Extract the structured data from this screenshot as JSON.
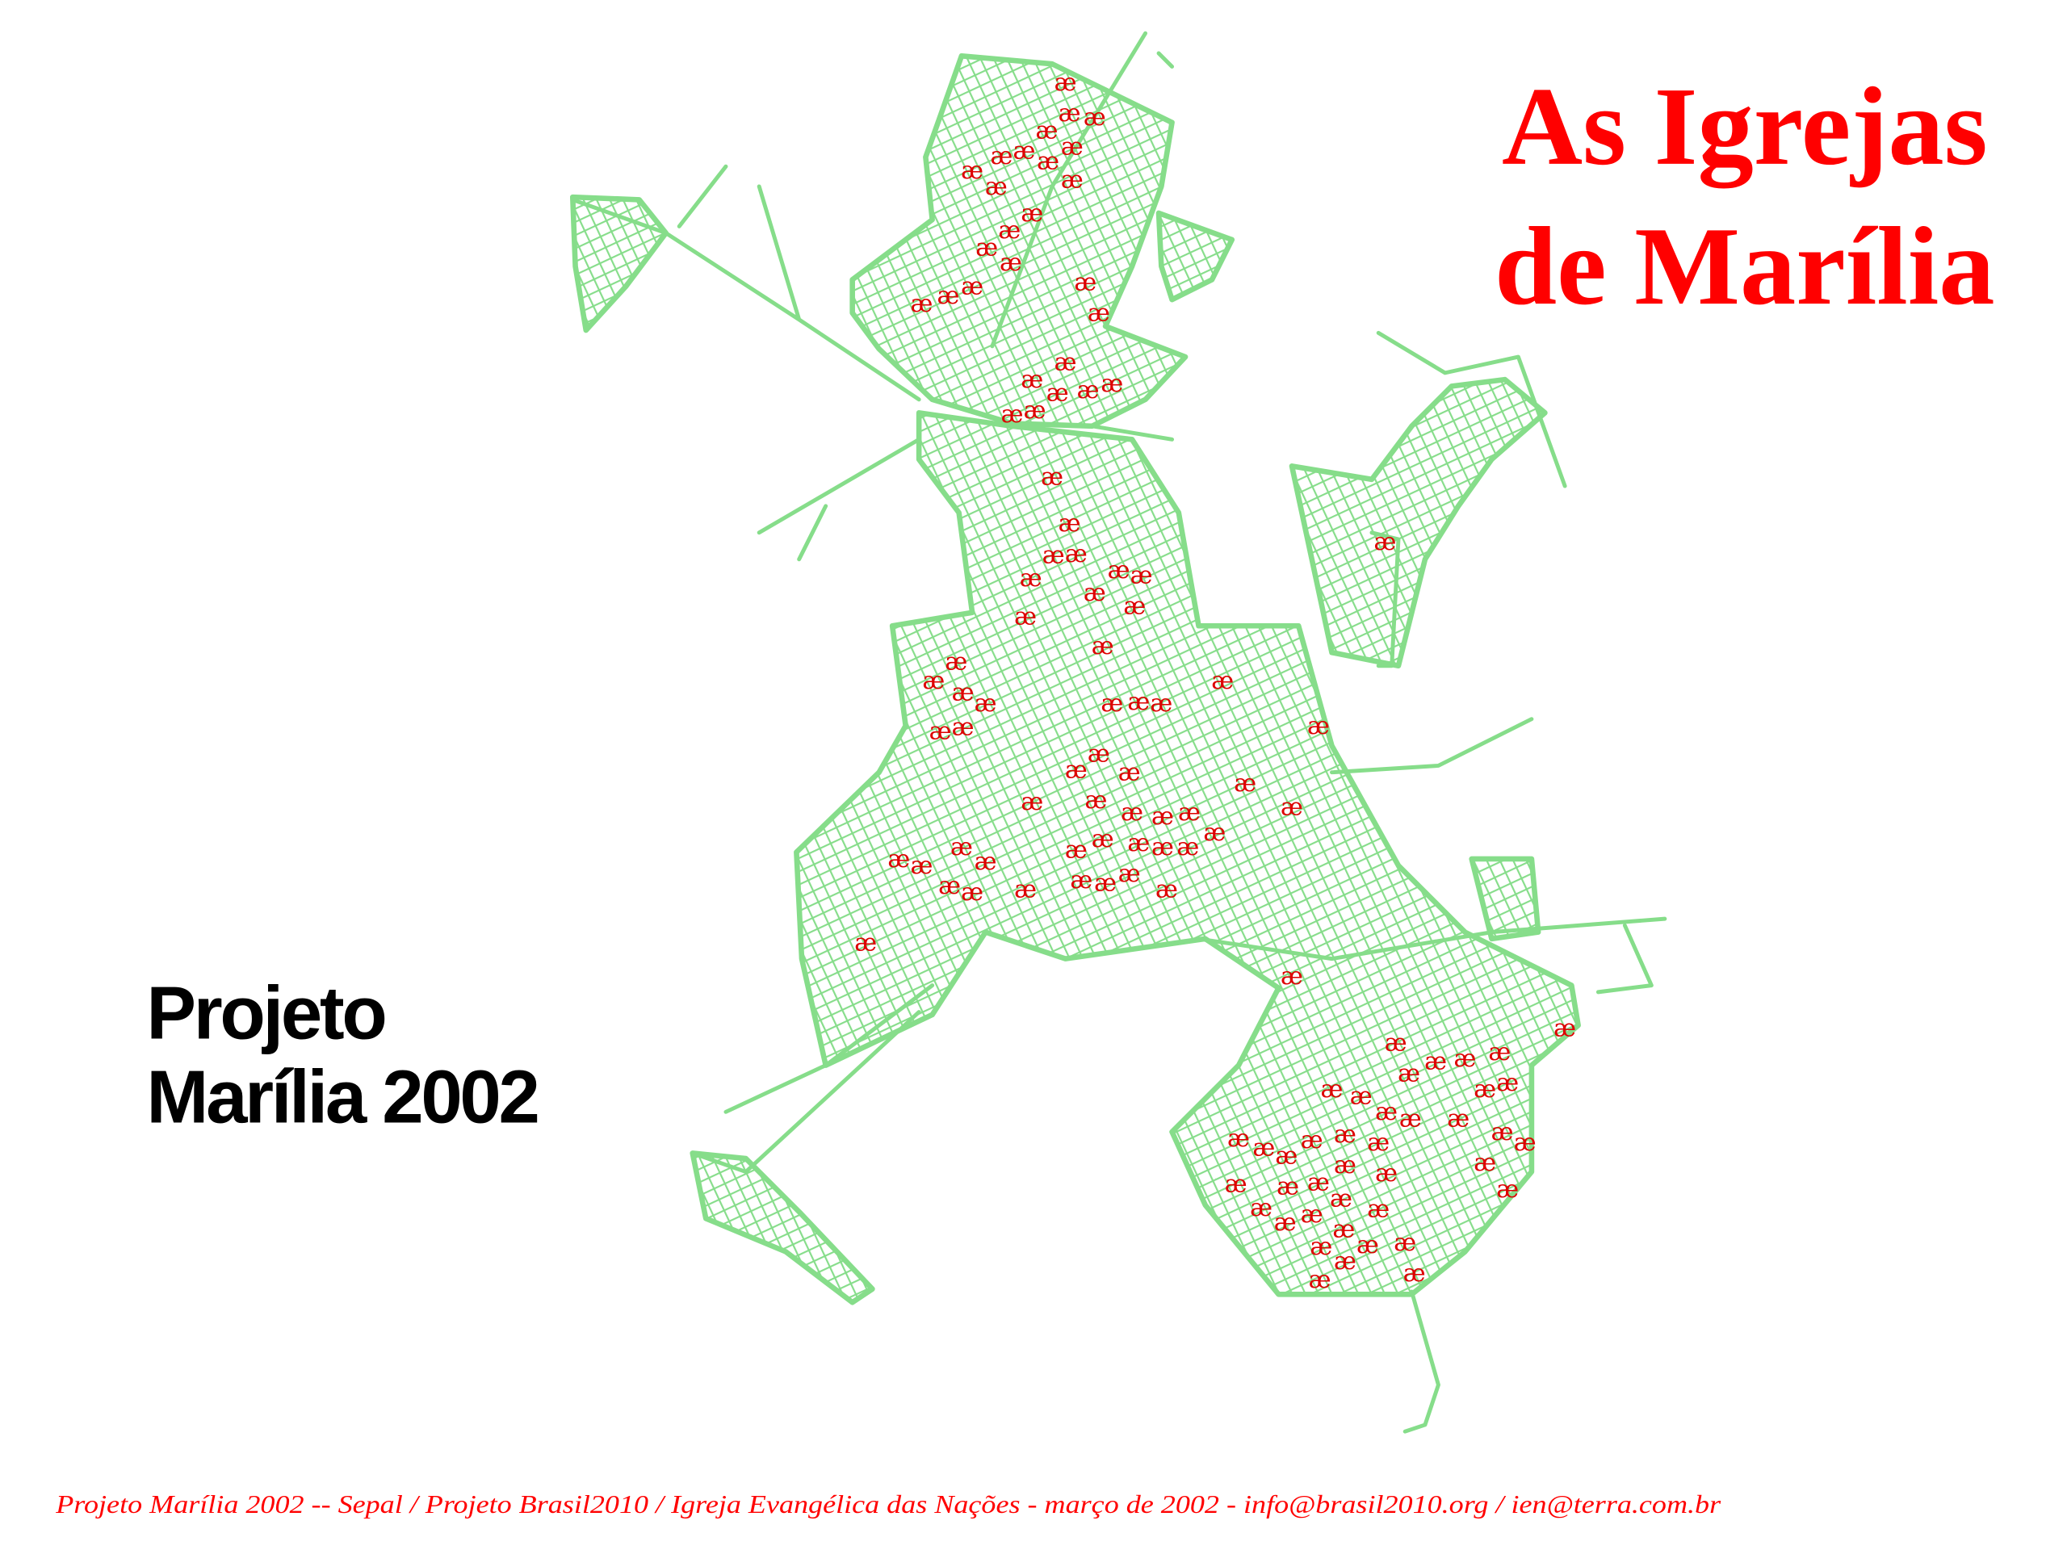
{
  "title": {
    "line1": "As Igrejas",
    "line2": "de Marília"
  },
  "project": {
    "line1": "Projeto",
    "line2": "Marília 2002"
  },
  "footer": "Projeto Marília 2002 -- Sepal / Projeto Brasil2010 / Igreja Evangélica das Nações - março de 2002 -  info@brasil2010.org / ien@terra.com.br",
  "map": {
    "church_marker_symbol": "æ",
    "colors": {
      "streets": "#86dd8a",
      "churches": "#dd0000",
      "title": "#ff0000",
      "footer": "#ff0000"
    }
  }
}
